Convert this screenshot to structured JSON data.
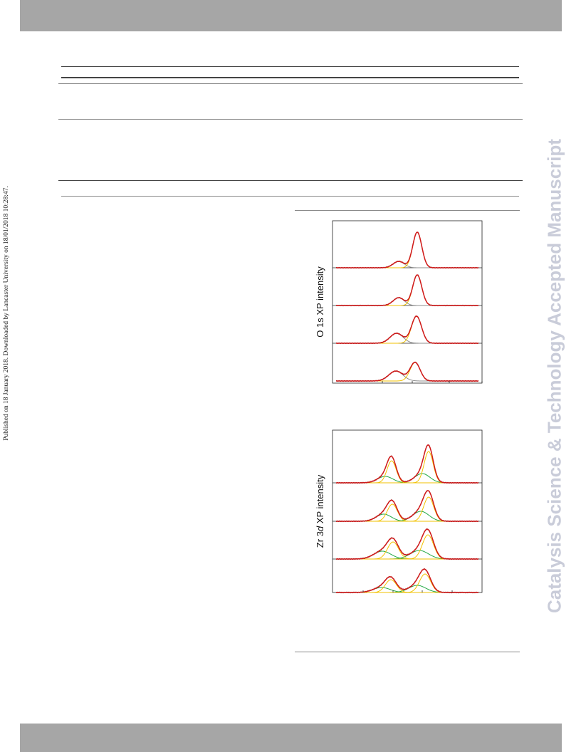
{
  "watermark": "Catalysis Science & Technology Accepted Manuscript",
  "published_line": "Published on 18 January 2018. Downloaded by Lancaster University on 18/01/2018 10:28:47.",
  "colors": {
    "band": "#a6a6a6",
    "watermark": "#c9ccd9",
    "fit_envelope": "#d11a1a",
    "raw_data": "#6b0000",
    "component_yellow": "#f2c200",
    "component_gray": "#8c8c8c",
    "component_green": "#22a844"
  },
  "figures": {
    "o1s": {
      "ylabel": "O 1s XP intensity",
      "type": "stacked-spectra",
      "stack_count": 4,
      "components": [
        "yellow",
        "gray"
      ]
    },
    "zr3d": {
      "ylabel_prefix": "Zr 3",
      "ylabel_italic": "d",
      "ylabel_suffix": " XP intensity",
      "type": "stacked-spectra",
      "stack_count": 4,
      "components": [
        "yellow",
        "green"
      ]
    }
  }
}
